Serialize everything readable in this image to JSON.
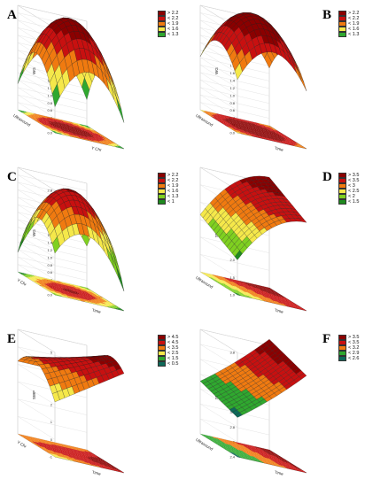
{
  "chart_data": [
    {
      "type": "surface",
      "panel": "A",
      "zlabel": "WG",
      "zticks": [
        "0.0",
        "0.2",
        "0.4",
        "0.6",
        "0.8",
        "1.0",
        "1.2",
        "1.4",
        "1.6",
        "1.8",
        "2.0",
        "2.2",
        "2.4",
        "2.6",
        "2.8"
      ],
      "xlabel": "Ultrasound",
      "ylabel": "Y Chr",
      "legend": [
        {
          "label": "> 2.2",
          "color": "#8b0000"
        },
        {
          "label": "< 2.2",
          "color": "#c81010"
        },
        {
          "label": "< 1.9",
          "color": "#f07a10"
        },
        {
          "label": "< 1.6",
          "color": "#f5e84a"
        },
        {
          "label": "< 1.3",
          "color": "#2fa82f"
        }
      ]
    },
    {
      "type": "surface",
      "panel": "B",
      "zlabel": "WG",
      "zticks": [
        "0.0",
        "0.2",
        "0.4",
        "0.6",
        "0.8",
        "1.0",
        "1.2",
        "1.4",
        "1.6",
        "1.8",
        "2.0",
        "2.2",
        "2.4",
        "2.6",
        "2.8"
      ],
      "xlabel": "Ultrasound",
      "ylabel": "Time",
      "legend": [
        {
          "label": "> 2.2",
          "color": "#8b0000"
        },
        {
          "label": "< 2.2",
          "color": "#c81010"
        },
        {
          "label": "< 1.9",
          "color": "#f07a10"
        },
        {
          "label": "< 1.6",
          "color": "#f5e84a"
        },
        {
          "label": "< 1.3",
          "color": "#2fa82f"
        }
      ]
    },
    {
      "type": "surface",
      "panel": "C",
      "zlabel": "WG",
      "zticks": [
        "0.0",
        "0.2",
        "0.4",
        "0.6",
        "0.8",
        "1.0",
        "1.2",
        "1.4",
        "1.6",
        "1.8",
        "2.0",
        "2.2",
        "2.4",
        "2.6",
        "2.8"
      ],
      "xlabel": "Y Chr",
      "ylabel": "Time",
      "legend": [
        {
          "label": "> 2.2",
          "color": "#8b0000"
        },
        {
          "label": "< 2.2",
          "color": "#c81010"
        },
        {
          "label": "< 1.9",
          "color": "#f07a10"
        },
        {
          "label": "< 1.6",
          "color": "#f5e84a"
        },
        {
          "label": "< 1.3",
          "color": "#7fd020"
        },
        {
          "label": "< 1",
          "color": "#1f8a1f"
        }
      ]
    },
    {
      "type": "surface",
      "panel": "D",
      "zlabel": "SWP",
      "zticks": [
        "1.0",
        "1.5",
        "2.0",
        "2.5",
        "3.0",
        "3.5",
        "4.0"
      ],
      "xlabel": "Ultrasound",
      "ylabel": "Time",
      "legend": [
        {
          "label": "> 3.5",
          "color": "#8b0000"
        },
        {
          "label": "< 3.5",
          "color": "#c81010"
        },
        {
          "label": "< 3",
          "color": "#f07a10"
        },
        {
          "label": "< 2.5",
          "color": "#f5e84a"
        },
        {
          "label": "< 2",
          "color": "#7fd020"
        },
        {
          "label": "< 1.5",
          "color": "#1f8a1f"
        }
      ]
    },
    {
      "type": "surface",
      "panel": "E",
      "zlabel": "SWP",
      "zticks": [
        "-1",
        "0",
        "1",
        "2",
        "3",
        "4",
        "5"
      ],
      "xlabel": "Y Chr",
      "ylabel": "Time",
      "legend": [
        {
          "label": "> 4.5",
          "color": "#8b0000"
        },
        {
          "label": "< 4.5",
          "color": "#c81010"
        },
        {
          "label": "< 3.5",
          "color": "#f07a10"
        },
        {
          "label": "< 2.5",
          "color": "#f5e84a"
        },
        {
          "label": "< 1.5",
          "color": "#2fa82f"
        },
        {
          "label": "< 0.5",
          "color": "#0e6a5a"
        }
      ]
    },
    {
      "type": "surface",
      "panel": "F",
      "zlabel": "SWP",
      "zticks": [
        "2.4",
        "2.6",
        "2.8",
        "3.0",
        "3.2",
        "3.4",
        "3.6",
        "3.8"
      ],
      "xlabel": "Ultrasound",
      "ylabel": "Time",
      "legend": [
        {
          "label": "> 3.5",
          "color": "#8b0000"
        },
        {
          "label": "< 3.5",
          "color": "#c81010"
        },
        {
          "label": "< 3.2",
          "color": "#f07a10"
        },
        {
          "label": "< 2.9",
          "color": "#2fa82f"
        },
        {
          "label": "< 2.6",
          "color": "#0e6a5a"
        }
      ]
    }
  ]
}
